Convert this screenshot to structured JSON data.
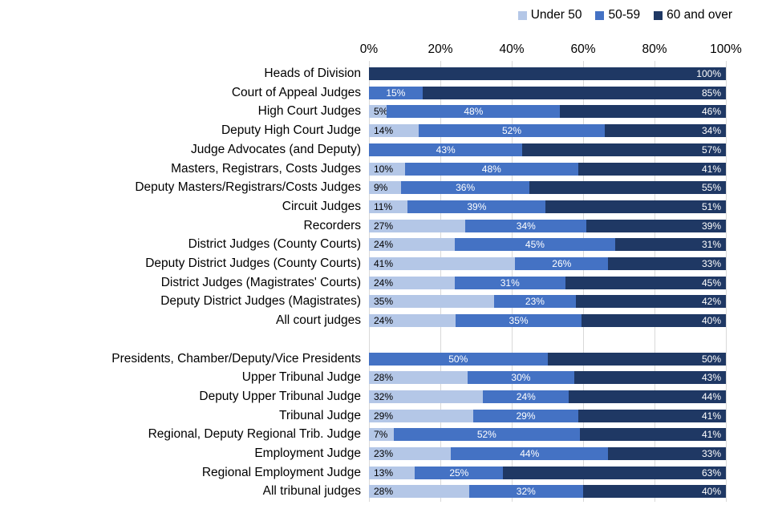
{
  "chart_data": {
    "type": "bar",
    "orientation": "horizontal",
    "stacked": true,
    "unit": "%",
    "title": "",
    "xlabel": "",
    "ylabel": "",
    "xlim": [
      0,
      100
    ],
    "grid": true,
    "legend_position": "top-right",
    "x_ticks": [
      "0%",
      "20%",
      "40%",
      "60%",
      "80%",
      "100%"
    ],
    "series_names": [
      "Under 50",
      "50-59",
      "60 and over"
    ],
    "colors": {
      "under_50": "#b4c7e7",
      "50_59": "#4472c4",
      "60_and_over": "#1f3864",
      "gridline": "#d9d9d9",
      "label_on_light": "#000000",
      "label_on_dark": "#ffffff"
    },
    "gap_after_index": 13,
    "groups": [
      {
        "label": "Heads of Division",
        "values": [
          null,
          null,
          100
        ]
      },
      {
        "label": "Court of Appeal Judges",
        "values": [
          null,
          15,
          85
        ]
      },
      {
        "label": "High Court Judges",
        "values": [
          5,
          48,
          46
        ]
      },
      {
        "label": "Deputy High Court Judge",
        "values": [
          14,
          52,
          34
        ]
      },
      {
        "label": "Judge Advocates (and Deputy)",
        "values": [
          0,
          43,
          57
        ]
      },
      {
        "label": "Masters, Registrars, Costs Judges",
        "values": [
          10,
          48,
          41
        ]
      },
      {
        "label": "Deputy Masters/Registrars/Costs Judges",
        "values": [
          9,
          36,
          55
        ]
      },
      {
        "label": "Circuit Judges",
        "values": [
          11,
          39,
          51
        ]
      },
      {
        "label": "Recorders",
        "values": [
          27,
          34,
          39
        ]
      },
      {
        "label": "District Judges (County Courts)",
        "values": [
          24,
          45,
          31
        ]
      },
      {
        "label": "Deputy District Judges (County Courts)",
        "values": [
          41,
          26,
          33
        ]
      },
      {
        "label": "District Judges (Magistrates' Courts)",
        "values": [
          24,
          31,
          45
        ]
      },
      {
        "label": "Deputy District Judges (Magistrates)",
        "values": [
          35,
          23,
          42
        ]
      },
      {
        "label": "All court judges",
        "values": [
          24,
          35,
          40
        ]
      },
      {
        "label": "Presidents, Chamber/Deputy/Vice Presidents",
        "values": [
          null,
          50,
          50
        ]
      },
      {
        "label": "Upper Tribunal Judge",
        "values": [
          28,
          30,
          43
        ]
      },
      {
        "label": "Deputy Upper Tribunal Judge",
        "values": [
          32,
          24,
          44
        ]
      },
      {
        "label": "Tribunal Judge",
        "values": [
          29,
          29,
          41
        ]
      },
      {
        "label": "Regional, Deputy Regional Trib. Judge",
        "values": [
          7,
          52,
          41
        ]
      },
      {
        "label": "Employment Judge",
        "values": [
          23,
          44,
          33
        ]
      },
      {
        "label": "Regional Employment Judge",
        "values": [
          13,
          25,
          63
        ]
      },
      {
        "label": "All tribunal judges",
        "values": [
          28,
          32,
          40
        ]
      }
    ]
  }
}
